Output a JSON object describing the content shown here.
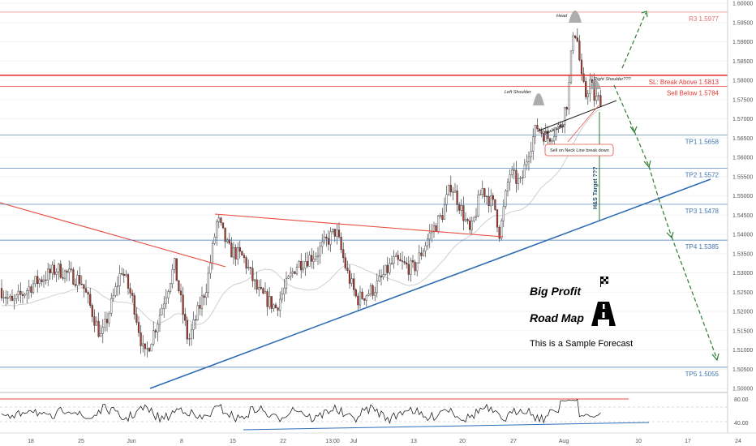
{
  "chart_data": {
    "type": "candlestick",
    "price_axis": {
      "min": 1.5,
      "max": 1.6,
      "ticks": [
        "1.60000",
        "1.59500",
        "1.59000",
        "1.58500",
        "1.58000",
        "1.57500",
        "1.57000",
        "1.56500",
        "1.56000",
        "1.55500",
        "1.55000",
        "1.54500",
        "1.54000",
        "1.53500",
        "1.53000",
        "1.52500",
        "1.52000",
        "1.51500",
        "1.51000",
        "1.50500",
        "1.50000"
      ]
    },
    "rsi_axis": {
      "ticks": [
        "80.00",
        "40.00"
      ]
    },
    "date_ticks": [
      "18",
      "25",
      "Jun",
      "8",
      "15",
      "22",
      "13:00",
      "Jul",
      "13",
      "20",
      "27",
      "Aug",
      "10",
      "17",
      "24"
    ],
    "levels": [
      {
        "label": "R3  1.5977",
        "value": 1.5977,
        "color": "#e07070"
      },
      {
        "label": "SL: Break Above 1.5813",
        "value": 1.5813,
        "color": "#e53935"
      },
      {
        "label": "Sell Below 1.5784",
        "value": 1.5784,
        "color": "#e53935"
      },
      {
        "label": "TP1  1.5658",
        "value": 1.5658,
        "color": "#3f74b0"
      },
      {
        "label": "TP2  1.5572",
        "value": 1.5572,
        "color": "#3f74b0"
      },
      {
        "label": "TP3  1.5478",
        "value": 1.5478,
        "color": "#3f74b0"
      },
      {
        "label": "TP4  1.5385",
        "value": 1.5385,
        "color": "#3f74b0"
      },
      {
        "label": "TP5  1.5055",
        "value": 1.5055,
        "color": "#3f74b0"
      }
    ],
    "annotations": {
      "head": "Head",
      "left_shoulder": "Left Shoulder",
      "right_shoulder": "Right Shoulder???",
      "neck_line": "Neck Line",
      "sell_note": "Sell on Neck Line break down",
      "target": "H&S Target ???"
    }
  },
  "branding": {
    "title_line1": "Big Profit",
    "title_line2": "Road Map",
    "subtitle": "This is a Sample Forecast"
  }
}
